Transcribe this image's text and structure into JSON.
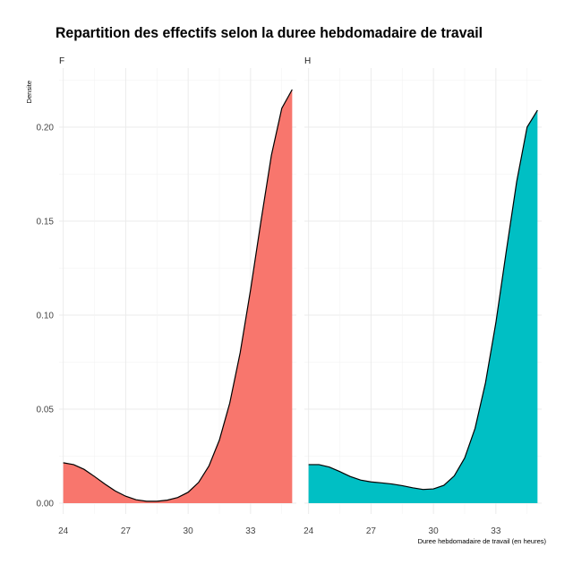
{
  "chart_data": {
    "type": "area",
    "title": "Repartition des effectifs selon la duree hebdomadaire de travail",
    "xlabel": "Duree hebdomadaire de travail (en heures)",
    "ylabel": "Densite",
    "xlim": [
      23.8,
      35.2
    ],
    "ylim": [
      0,
      0.22
    ],
    "x_ticks": [
      24,
      27,
      30,
      33
    ],
    "y_ticks": [
      0.0,
      0.05,
      0.1,
      0.15,
      0.2
    ],
    "x_tick_labels": [
      "24",
      "27",
      "30",
      "33"
    ],
    "y_tick_labels": [
      "0.00",
      "0.05",
      "0.10",
      "0.15",
      "0.20"
    ],
    "grid": true,
    "legend": "none",
    "panels": [
      {
        "name": "F",
        "color": "#F8766D",
        "x": [
          24,
          24.5,
          25,
          25.5,
          26,
          26.5,
          27,
          27.5,
          28,
          28.5,
          29,
          29.5,
          30,
          30.5,
          31,
          31.5,
          32,
          32.5,
          33,
          33.5,
          34,
          34.5,
          35
        ],
        "y": [
          0.0215,
          0.0205,
          0.018,
          0.0142,
          0.0102,
          0.0065,
          0.0037,
          0.0018,
          0.001,
          0.001,
          0.0016,
          0.003,
          0.0058,
          0.011,
          0.0198,
          0.0335,
          0.0532,
          0.08,
          0.1135,
          0.15,
          0.185,
          0.21,
          0.22
        ]
      },
      {
        "name": "H",
        "color": "#00BFC4",
        "x": [
          24,
          24.5,
          25,
          25.5,
          26,
          26.5,
          27,
          27.5,
          28,
          28.5,
          29,
          29.5,
          30,
          30.5,
          31,
          31.5,
          32,
          32.5,
          33,
          33.5,
          34,
          34.5,
          35
        ],
        "y": [
          0.0205,
          0.0205,
          0.0192,
          0.0168,
          0.0142,
          0.0123,
          0.0113,
          0.0108,
          0.0102,
          0.0093,
          0.0082,
          0.0073,
          0.0076,
          0.0095,
          0.0145,
          0.024,
          0.0398,
          0.064,
          0.096,
          0.134,
          0.171,
          0.2,
          0.209
        ]
      }
    ]
  }
}
